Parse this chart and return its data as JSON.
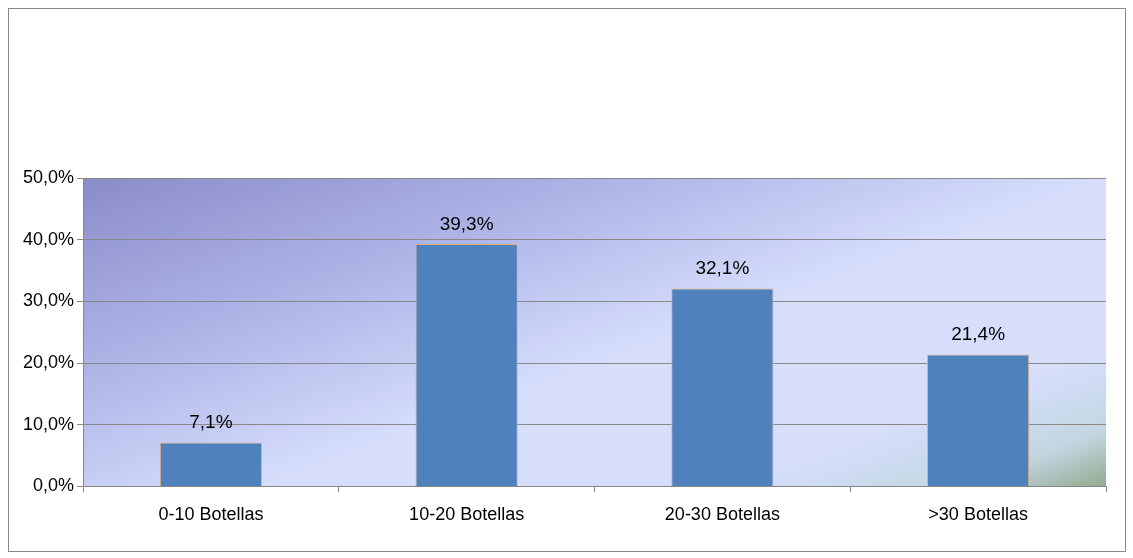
{
  "chart_data": {
    "type": "bar",
    "categories": [
      "0-10 Botellas",
      "10-20 Botellas",
      "20-30 Botellas",
      ">30 Botellas"
    ],
    "values": [
      7.1,
      39.3,
      32.1,
      21.4
    ],
    "value_labels": [
      "7,1%",
      "39,3%",
      "32,1%",
      "21,4%"
    ],
    "color": "#4f81bd",
    "ylim": [
      0,
      50
    ],
    "yticks": [
      {
        "value": 0,
        "label": "0,0%"
      },
      {
        "value": 10,
        "label": "10,0%"
      },
      {
        "value": 20,
        "label": "20,0%"
      },
      {
        "value": 30,
        "label": "30,0%"
      },
      {
        "value": 40,
        "label": "40,0%"
      },
      {
        "value": 50,
        "label": "50,0%"
      }
    ],
    "grid": "y",
    "legend": false
  }
}
